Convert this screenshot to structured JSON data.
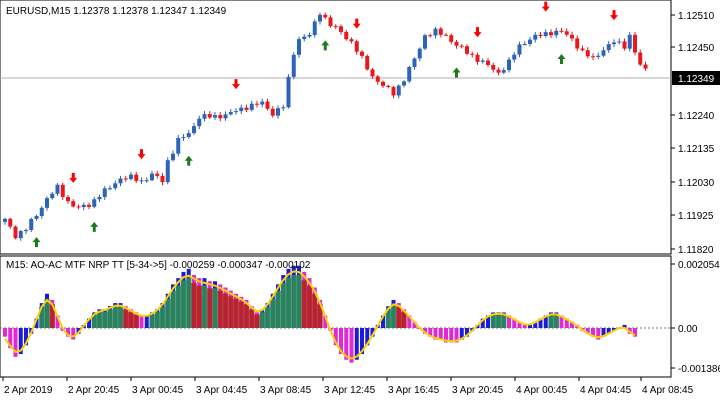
{
  "colors": {
    "background": "#ffffff",
    "frame": "#000000",
    "bull_candle": "#2e63b8",
    "bear_candle": "#e41a1c",
    "up_arrow": "#1f7a1f",
    "down_arrow": "#ff0000",
    "price_line": "#b0b0b0",
    "price_tag_bg": "#000000",
    "price_tag_text": "#ffffff",
    "hist_blue": "#1c1cd8",
    "hist_magenta": "#e028d8",
    "hist_green": "#2e8b57",
    "hist_red": "#b22222",
    "signal_line": "#ffd000"
  },
  "main_chart": {
    "title": "EURUSD,M15  1.12378 1.12378 1.12347 1.12349",
    "current_price": "1.12349",
    "price_axis_labels": [
      "1.12510",
      "1.12450",
      "1.12240",
      "1.12135",
      "1.12030",
      "1.11925",
      "1.11820"
    ]
  },
  "indicator": {
    "title": "M15: AO-AC MTF NRP TT [5-34->5] -0.000259 -0.000347 -0.000102",
    "axis_labels": [
      "0.002054",
      "0.00",
      "-0.001386"
    ]
  },
  "time_axis_labels": [
    "2 Apr 2019",
    "2 Apr 20:45",
    "3 Apr 00:45",
    "3 Apr 04:45",
    "3 Apr 08:45",
    "3 Apr 12:45",
    "3 Apr 16:45",
    "3 Apr 20:45",
    "4 Apr 00:45",
    "4 Apr 04:45",
    "4 Apr 08:45"
  ],
  "chart_data": {
    "type": "candlestick",
    "symbol": "EURUSD",
    "timeframe": "M15",
    "close_path": [
      [
        0,
        1.11905
      ],
      [
        2,
        1.1186
      ],
      [
        4,
        1.1188
      ],
      [
        6,
        1.1192
      ],
      [
        8,
        1.1197
      ],
      [
        10,
        1.12
      ],
      [
        12,
        1.1196
      ],
      [
        14,
        1.1194
      ],
      [
        16,
        1.1195
      ],
      [
        18,
        1.1198
      ],
      [
        20,
        1.12
      ],
      [
        22,
        1.1203
      ],
      [
        24,
        1.1203
      ],
      [
        26,
        1.1202
      ],
      [
        28,
        1.1204
      ],
      [
        30,
        1.1202
      ],
      [
        31,
        1.1208
      ],
      [
        33,
        1.1214
      ],
      [
        35,
        1.1216
      ],
      [
        37,
        1.1221
      ],
      [
        40,
        1.1221
      ],
      [
        43,
        1.1222
      ],
      [
        46,
        1.1224
      ],
      [
        49,
        1.1225
      ],
      [
        51,
        1.1222
      ],
      [
        53,
        1.1224
      ],
      [
        54,
        1.1232
      ],
      [
        55,
        1.124
      ],
      [
        56,
        1.1244
      ],
      [
        58,
        1.1245
      ],
      [
        60,
        1.1252
      ],
      [
        62,
        1.1248
      ],
      [
        64,
        1.1246
      ],
      [
        66,
        1.1243
      ],
      [
        68,
        1.1238
      ],
      [
        70,
        1.1233
      ],
      [
        72,
        1.123
      ],
      [
        74,
        1.1228
      ],
      [
        76,
        1.1232
      ],
      [
        78,
        1.1238
      ],
      [
        80,
        1.1245
      ],
      [
        82,
        1.1246
      ],
      [
        84,
        1.1245
      ],
      [
        86,
        1.1242
      ],
      [
        88,
        1.124
      ],
      [
        90,
        1.1238
      ],
      [
        92,
        1.1236
      ],
      [
        94,
        1.1234
      ],
      [
        96,
        1.1237
      ],
      [
        98,
        1.1242
      ],
      [
        100,
        1.1244
      ],
      [
        102,
        1.1245
      ],
      [
        104,
        1.1246
      ],
      [
        106,
        1.1246
      ],
      [
        108,
        1.1244
      ],
      [
        110,
        1.124
      ],
      [
        112,
        1.1238
      ],
      [
        114,
        1.1241
      ],
      [
        116,
        1.1243
      ],
      [
        118,
        1.1242
      ],
      [
        119,
        1.1245
      ],
      [
        120,
        1.124
      ],
      [
        121,
        1.1236
      ],
      [
        122,
        1.12349
      ]
    ],
    "up_signal_bars": [
      6,
      17,
      35,
      61,
      86,
      106
    ],
    "down_signal_bars": [
      13,
      26,
      44,
      67,
      90,
      103,
      116
    ],
    "indicator_name": "AO-AC MTF NRP TT [5-34->5]",
    "indicator_values": [
      "-0.000259",
      "-0.000347",
      "-0.000102"
    ],
    "indicator_ylim": [
      -0.001386,
      0.002054
    ],
    "histogram": [
      -0.0003,
      -0.0007,
      -0.001,
      -0.0009,
      -0.0006,
      -0.0002,
      0.0003,
      0.0008,
      0.0011,
      0.0009,
      0.0004,
      -0.0001,
      -0.0003,
      -0.0004,
      -0.0002,
      0.0001,
      0.0003,
      0.0005,
      0.0006,
      0.0006,
      0.0007,
      0.0008,
      0.0008,
      0.0007,
      0.0006,
      0.0005,
      0.0004,
      0.0004,
      0.0005,
      0.0006,
      0.0008,
      0.0011,
      0.0014,
      0.0016,
      0.0018,
      0.0019,
      0.0017,
      0.0016,
      0.0016,
      0.0015,
      0.0015,
      0.0014,
      0.0013,
      0.0012,
      0.0011,
      0.001,
      0.0009,
      0.0007,
      0.0005,
      0.0006,
      0.0008,
      0.0011,
      0.0014,
      0.0017,
      0.0019,
      0.002,
      0.002,
      0.0018,
      0.0016,
      0.0013,
      0.0009,
      0.0004,
      -0.0001,
      -0.0006,
      -0.0009,
      -0.0011,
      -0.0012,
      -0.0011,
      -0.0009,
      -0.0006,
      -0.0003,
      0.0001,
      0.0004,
      0.0007,
      0.0009,
      0.0008,
      0.0006,
      0.0004,
      0.0002,
      0.0,
      -0.0002,
      -0.0003,
      -0.0004,
      -0.0004,
      -0.0005,
      -0.0005,
      -0.0005,
      -0.0004,
      -0.0003,
      -0.0001,
      0.0001,
      0.0003,
      0.0004,
      0.0005,
      0.0005,
      0.0005,
      0.0004,
      0.0003,
      0.0002,
      0.0001,
      0.0001,
      0.0002,
      0.0003,
      0.0004,
      0.0005,
      0.0005,
      0.0004,
      0.0003,
      0.0002,
      0.0001,
      -0.0001,
      -0.0002,
      -0.0003,
      -0.0004,
      -0.0003,
      -0.0002,
      -0.0001,
      0.0,
      0.0001,
      -0.0002,
      -0.0003
    ]
  }
}
